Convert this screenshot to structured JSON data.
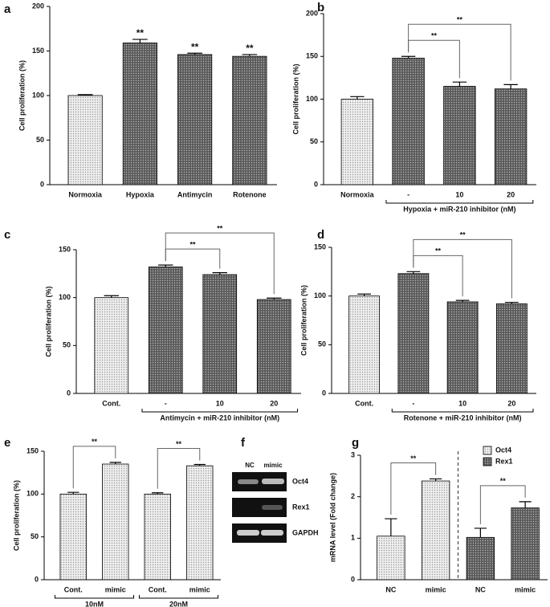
{
  "chart_data": [
    {
      "type": "bar",
      "panel": "a",
      "ylabel": "Cell proliferation (%)",
      "categories": [
        "Normoxia",
        "Hypoxia",
        "Antimycin",
        "Rotenone"
      ],
      "values": [
        100,
        159,
        146,
        144
      ],
      "errors": [
        1,
        4,
        1.5,
        2
      ],
      "colors": [
        "#eeeeee",
        "#5a5a5a",
        "#5a5a5a",
        "#5a5a5a"
      ],
      "ylim": [
        0,
        200
      ],
      "yticks": [
        0,
        50,
        100,
        150,
        200
      ],
      "annotations": [
        {
          "text": "**",
          "category": 1
        },
        {
          "text": "**",
          "category": 2
        },
        {
          "text": "**",
          "category": 3
        }
      ]
    },
    {
      "type": "bar",
      "panel": "b",
      "ylabel": "Cell proliferation (%)",
      "categories": [
        "Normoxia",
        "-",
        "10",
        "20"
      ],
      "values": [
        100,
        148,
        115,
        112
      ],
      "errors": [
        3,
        2,
        5,
        5
      ],
      "colors": [
        "#eeeeee",
        "#5a5a5a",
        "#5a5a5a",
        "#5a5a5a"
      ],
      "ylim": [
        0,
        200
      ],
      "yticks": [
        0,
        50,
        100,
        150,
        200
      ],
      "groups": [
        {
          "label": "Hypoxia  + miR-210 inhibitor (nM)",
          "categories": [
            1,
            3
          ]
        }
      ],
      "comparisons": [
        {
          "label": "**",
          "categories": [
            1,
            2
          ]
        },
        {
          "label": "**",
          "categories": [
            1,
            3
          ]
        }
      ]
    },
    {
      "type": "bar",
      "panel": "c",
      "ylabel": "Cell proliferation (%)",
      "categories": [
        "Cont.",
        "-",
        "10",
        "20"
      ],
      "values": [
        100,
        132,
        124,
        98
      ],
      "errors": [
        2,
        2,
        2,
        1.5
      ],
      "colors": [
        "#eeeeee",
        "#5a5a5a",
        "#5a5a5a",
        "#5a5a5a"
      ],
      "ylim": [
        0,
        150
      ],
      "yticks": [
        0,
        50,
        100,
        150
      ],
      "groups": [
        {
          "label": "Antimycin + miR-210 inhibitor (nM)",
          "categories": [
            1,
            3
          ]
        }
      ],
      "comparisons": [
        {
          "label": "**",
          "categories": [
            1,
            2
          ]
        },
        {
          "label": "**",
          "categories": [
            1,
            3
          ]
        }
      ]
    },
    {
      "type": "bar",
      "panel": "d",
      "ylabel": "Cell proliferation (%)",
      "categories": [
        "Cont.",
        "-",
        "10",
        "20"
      ],
      "values": [
        100,
        123,
        94,
        92
      ],
      "errors": [
        2,
        2,
        1.5,
        1.5
      ],
      "colors": [
        "#eeeeee",
        "#5a5a5a",
        "#5a5a5a",
        "#5a5a5a"
      ],
      "ylim": [
        0,
        150
      ],
      "yticks": [
        0,
        50,
        100,
        150
      ],
      "groups": [
        {
          "label": "Rotenone  + miR-210 inhibitor (nM)",
          "categories": [
            1,
            3
          ]
        }
      ],
      "comparisons": [
        {
          "label": "**",
          "categories": [
            1,
            2
          ]
        },
        {
          "label": "**",
          "categories": [
            1,
            3
          ]
        }
      ]
    },
    {
      "type": "bar",
      "panel": "e",
      "ylabel": "Cell proliferation (%)",
      "categories": [
        "Cont.",
        "mimic",
        "Cont.",
        "mimic"
      ],
      "values": [
        100,
        135,
        100,
        133
      ],
      "errors": [
        2,
        2,
        1.5,
        1.5
      ],
      "colors": [
        "#eeeeee",
        "#eeeeee",
        "#eeeeee",
        "#eeeeee"
      ],
      "ylim": [
        0,
        150
      ],
      "yticks": [
        0,
        50,
        100,
        150
      ],
      "groups": [
        {
          "label": "10nM",
          "categories": [
            0,
            1
          ]
        },
        {
          "label": "20nM",
          "categories": [
            2,
            3
          ]
        }
      ],
      "comparisons": [
        {
          "label": "**",
          "categories": [
            0,
            1
          ]
        },
        {
          "label": "**",
          "categories": [
            2,
            3
          ]
        }
      ]
    },
    {
      "type": "bar",
      "panel": "g",
      "ylabel": "mRNA level (Fold change)",
      "categories": [
        "NC",
        "mimic",
        "NC",
        "mimic"
      ],
      "series": [
        {
          "name": "Oct4",
          "color": "#eeeeee",
          "values": [
            1.05,
            2.38,
            null,
            null
          ],
          "errors": [
            0.42,
            0.05,
            null,
            null
          ]
        },
        {
          "name": "Rex1",
          "color": "#5a5a5a",
          "values": [
            null,
            null,
            1.02,
            1.73
          ],
          "errors": [
            null,
            null,
            0.22,
            0.15
          ]
        }
      ],
      "ylim": [
        0,
        3
      ],
      "yticks": [
        0,
        1,
        2,
        3
      ],
      "legend": "upper right",
      "divider": true,
      "comparisons": [
        {
          "label": "**",
          "categories": [
            0,
            1
          ]
        },
        {
          "label": "**",
          "categories": [
            2,
            3
          ]
        }
      ]
    }
  ],
  "gel": {
    "panel": "f",
    "lanes": [
      "NC",
      "mimic"
    ],
    "bands": [
      "Oct4",
      "Rex1",
      "GAPDH"
    ]
  }
}
